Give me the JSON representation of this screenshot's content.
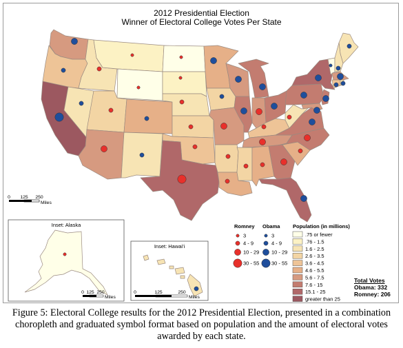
{
  "title": "2012 Presidential Election",
  "subtitle": "Winner of Electoral College Votes Per State",
  "colors": {
    "romney": "#e8302b",
    "obama": "#1f4e9c",
    "pop_classes": [
      "#ffffe8",
      "#fcf2c4",
      "#f7e4b4",
      "#f3d5a4",
      "#eec497",
      "#e6b088",
      "#d69a80",
      "#c37c70",
      "#b06869",
      "#9c5860"
    ]
  },
  "legend": {
    "romney_header": "Romney",
    "obama_header": "Obama",
    "vote_classes": [
      "3",
      "4 - 9",
      "10 - 29",
      "30 - 55"
    ],
    "population_header": "Population (in millions)",
    "population_classes": [
      ".75 or fewer",
      ".76 - 1.5",
      "1.6 - 2.5",
      "2.6 - 3.5",
      "3.6 - 4.5",
      "4.6 - 5.5",
      "5.6 - 7.5",
      "7.6 - 15",
      "15.1 - 25",
      "greater than 25"
    ]
  },
  "scale_main": {
    "ticks": [
      "0",
      "125",
      "250"
    ],
    "unit": "Miles"
  },
  "inset_alaska": {
    "label": "Inset: Alaska",
    "ticks": [
      "0",
      "125",
      "250"
    ],
    "unit": "Miles"
  },
  "inset_hawaii": {
    "label": "Inset: Hawai'i",
    "ticks": [
      "0",
      "125",
      "250"
    ],
    "unit": "Miles"
  },
  "totals": {
    "header": "Total Votes",
    "obama": "Obama: 332",
    "romney": "Romney: 206"
  },
  "caption": "Figure 5: Electoral College results for the 2012 Presidential Election, presented in a combination choropleth and graduated symbol format based on population and the amount of electoral votes awarded by each state.",
  "states": [
    {
      "id": "WA",
      "winner": "obama",
      "votes": 12,
      "pop_class": 6
    },
    {
      "id": "OR",
      "winner": "obama",
      "votes": 7,
      "pop_class": 4
    },
    {
      "id": "CA",
      "winner": "obama",
      "votes": 55,
      "pop_class": 9
    },
    {
      "id": "NV",
      "winner": "obama",
      "votes": 6,
      "pop_class": 2
    },
    {
      "id": "ID",
      "winner": "romney",
      "votes": 4,
      "pop_class": 2
    },
    {
      "id": "MT",
      "winner": "romney",
      "votes": 3,
      "pop_class": 1
    },
    {
      "id": "WY",
      "winner": "romney",
      "votes": 3,
      "pop_class": 0
    },
    {
      "id": "UT",
      "winner": "romney",
      "votes": 6,
      "pop_class": 3
    },
    {
      "id": "AZ",
      "winner": "romney",
      "votes": 11,
      "pop_class": 6
    },
    {
      "id": "CO",
      "winner": "obama",
      "votes": 9,
      "pop_class": 5
    },
    {
      "id": "NM",
      "winner": "obama",
      "votes": 5,
      "pop_class": 2
    },
    {
      "id": "ND",
      "winner": "romney",
      "votes": 3,
      "pop_class": 0
    },
    {
      "id": "SD",
      "winner": "romney",
      "votes": 3,
      "pop_class": 1
    },
    {
      "id": "NE",
      "winner": "romney",
      "votes": 5,
      "pop_class": 2
    },
    {
      "id": "KS",
      "winner": "romney",
      "votes": 6,
      "pop_class": 3
    },
    {
      "id": "OK",
      "winner": "romney",
      "votes": 7,
      "pop_class": 4
    },
    {
      "id": "TX",
      "winner": "romney",
      "votes": 38,
      "pop_class": 8
    },
    {
      "id": "MN",
      "winner": "obama",
      "votes": 10,
      "pop_class": 5
    },
    {
      "id": "IA",
      "winner": "obama",
      "votes": 6,
      "pop_class": 3
    },
    {
      "id": "MO",
      "winner": "romney",
      "votes": 10,
      "pop_class": 6
    },
    {
      "id": "AR",
      "winner": "romney",
      "votes": 6,
      "pop_class": 3
    },
    {
      "id": "LA",
      "winner": "romney",
      "votes": 8,
      "pop_class": 5
    },
    {
      "id": "WI",
      "winner": "obama",
      "votes": 10,
      "pop_class": 6
    },
    {
      "id": "IL",
      "winner": "obama",
      "votes": 20,
      "pop_class": 7
    },
    {
      "id": "MI",
      "winner": "obama",
      "votes": 16,
      "pop_class": 7
    },
    {
      "id": "IN",
      "winner": "romney",
      "votes": 11,
      "pop_class": 6
    },
    {
      "id": "OH",
      "winner": "obama",
      "votes": 18,
      "pop_class": 7
    },
    {
      "id": "KY",
      "winner": "romney",
      "votes": 8,
      "pop_class": 4
    },
    {
      "id": "TN",
      "winner": "romney",
      "votes": 11,
      "pop_class": 6
    },
    {
      "id": "MS",
      "winner": "romney",
      "votes": 6,
      "pop_class": 3
    },
    {
      "id": "AL",
      "winner": "romney",
      "votes": 9,
      "pop_class": 5
    },
    {
      "id": "GA",
      "winner": "romney",
      "votes": 16,
      "pop_class": 7
    },
    {
      "id": "FL",
      "winner": "obama",
      "votes": 29,
      "pop_class": 8
    },
    {
      "id": "SC",
      "winner": "romney",
      "votes": 9,
      "pop_class": 5
    },
    {
      "id": "NC",
      "winner": "romney",
      "votes": 15,
      "pop_class": 7
    },
    {
      "id": "VA",
      "winner": "obama",
      "votes": 13,
      "pop_class": 7
    },
    {
      "id": "WV",
      "winner": "romney",
      "votes": 5,
      "pop_class": 2
    },
    {
      "id": "PA",
      "winner": "obama",
      "votes": 20,
      "pop_class": 7
    },
    {
      "id": "NY",
      "winner": "obama",
      "votes": 29,
      "pop_class": 8
    },
    {
      "id": "ME",
      "winner": "obama",
      "votes": 4,
      "pop_class": 2
    },
    {
      "id": "VT",
      "winner": "obama",
      "votes": 3,
      "pop_class": 0
    },
    {
      "id": "NH",
      "winner": "obama",
      "votes": 4,
      "pop_class": 2
    },
    {
      "id": "MA",
      "winner": "obama",
      "votes": 11,
      "pop_class": 6
    },
    {
      "id": "CT",
      "winner": "obama",
      "votes": 7,
      "pop_class": 4
    },
    {
      "id": "RI",
      "winner": "obama",
      "votes": 4,
      "pop_class": 2
    },
    {
      "id": "NJ",
      "winner": "obama",
      "votes": 14,
      "pop_class": 7
    },
    {
      "id": "MD",
      "winner": "obama",
      "votes": 10,
      "pop_class": 6
    },
    {
      "id": "AK",
      "winner": "romney",
      "votes": 3,
      "pop_class": 0
    },
    {
      "id": "HI",
      "winner": "obama",
      "votes": 4,
      "pop_class": 2
    }
  ]
}
